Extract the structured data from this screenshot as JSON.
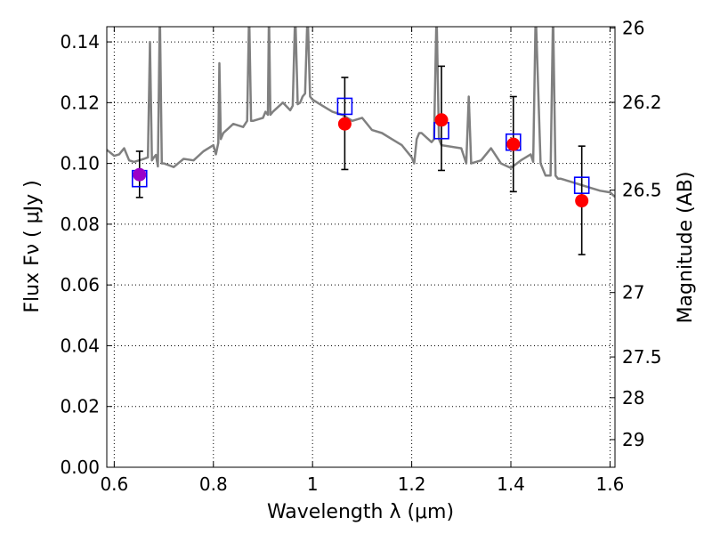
{
  "chart_data": {
    "type": "scatter",
    "xlabel": "Wavelength  λ (μm)",
    "ylabel": "Flux  Fν  ( μJy )",
    "ylabel_right": "Magnitude (AB)",
    "xlim": [
      0.585,
      1.61
    ],
    "ylim": [
      0.0,
      0.145
    ],
    "grid": true,
    "x_ticks": [
      {
        "value": 0.6,
        "label": "0.6"
      },
      {
        "value": 0.8,
        "label": "0.8"
      },
      {
        "value": 1.0,
        "label": "1"
      },
      {
        "value": 1.2,
        "label": "1.2"
      },
      {
        "value": 1.4,
        "label": "1.4"
      },
      {
        "value": 1.6,
        "label": "1.6"
      }
    ],
    "y_ticks": [
      {
        "value": 0.0,
        "label": "0.00"
      },
      {
        "value": 0.02,
        "label": "0.02"
      },
      {
        "value": 0.04,
        "label": "0.04"
      },
      {
        "value": 0.06,
        "label": "0.06"
      },
      {
        "value": 0.08,
        "label": "0.08"
      },
      {
        "value": 0.1,
        "label": "0.10"
      },
      {
        "value": 0.12,
        "label": "0.12"
      },
      {
        "value": 0.14,
        "label": "0.14"
      }
    ],
    "right_ticks": [
      {
        "flux": 0.1446,
        "label": "26"
      },
      {
        "flux": 0.1201,
        "label": "26.2"
      },
      {
        "flux": 0.0912,
        "label": "26.5"
      },
      {
        "flux": 0.0575,
        "label": "27"
      },
      {
        "flux": 0.0363,
        "label": "27.5"
      },
      {
        "flux": 0.0229,
        "label": "28"
      },
      {
        "flux": 0.0091,
        "label": "29"
      }
    ],
    "series": [
      {
        "name": "observed",
        "marker": "circle",
        "color": "#ff0000",
        "points": [
          {
            "x": 1.065,
            "y": 0.113,
            "yerr_low": 0.098,
            "yerr_high": 0.1283
          },
          {
            "x": 1.26,
            "y": 0.1143,
            "yerr_low": 0.0977,
            "yerr_high": 0.132
          },
          {
            "x": 1.405,
            "y": 0.1063,
            "yerr_low": 0.0907,
            "yerr_high": 0.122
          },
          {
            "x": 1.543,
            "y": 0.0877,
            "yerr_low": 0.07,
            "yerr_high": 0.1057
          }
        ]
      },
      {
        "name": "observed_optical",
        "marker": "circle",
        "color": "#9b00c8",
        "points": [
          {
            "x": 0.651,
            "y": 0.0963,
            "yerr_low": 0.0888,
            "yerr_high": 0.104
          }
        ]
      },
      {
        "name": "model_photometry",
        "marker": "square",
        "color": "#0000ff",
        "points": [
          {
            "x": 0.651,
            "y": 0.095
          },
          {
            "x": 1.065,
            "y": 0.1188
          },
          {
            "x": 1.26,
            "y": 0.1108
          },
          {
            "x": 1.405,
            "y": 0.107
          },
          {
            "x": 1.543,
            "y": 0.0928
          }
        ]
      }
    ],
    "spectrum": {
      "name": "template_spectrum",
      "color": "#808080",
      "x": [
        0.585,
        0.6,
        0.61,
        0.62,
        0.63,
        0.64,
        0.65,
        0.66,
        0.668,
        0.672,
        0.676,
        0.68,
        0.684,
        0.688,
        0.692,
        0.696,
        0.7,
        0.72,
        0.74,
        0.76,
        0.78,
        0.8,
        0.805,
        0.81,
        0.812,
        0.815,
        0.82,
        0.84,
        0.86,
        0.868,
        0.872,
        0.876,
        0.88,
        0.9,
        0.905,
        0.91,
        0.912,
        0.915,
        0.92,
        0.94,
        0.955,
        0.96,
        0.965,
        0.97,
        0.975,
        0.98,
        0.985,
        0.99,
        0.995,
        1.0,
        1.02,
        1.04,
        1.06,
        1.08,
        1.1,
        1.12,
        1.14,
        1.16,
        1.18,
        1.2,
        1.205,
        1.21,
        1.215,
        1.22,
        1.24,
        1.245,
        1.25,
        1.255,
        1.26,
        1.3,
        1.31,
        1.315,
        1.32,
        1.34,
        1.36,
        1.38,
        1.4,
        1.42,
        1.44,
        1.445,
        1.45,
        1.46,
        1.47,
        1.48,
        1.485,
        1.49,
        1.495,
        1.5,
        1.52,
        1.54,
        1.56,
        1.58,
        1.6,
        1.61
      ],
      "y": [
        0.1045,
        0.1025,
        0.103,
        0.105,
        0.101,
        0.1005,
        0.101,
        0.1015,
        0.102,
        0.14,
        0.101,
        0.102,
        0.1028,
        0.099,
        0.15,
        0.1,
        0.1,
        0.0988,
        0.1015,
        0.101,
        0.104,
        0.106,
        0.103,
        0.1068,
        0.133,
        0.108,
        0.11,
        0.113,
        0.112,
        0.114,
        0.15,
        0.114,
        0.114,
        0.115,
        0.117,
        0.116,
        0.15,
        0.116,
        0.117,
        0.12,
        0.1175,
        0.119,
        0.15,
        0.1195,
        0.12,
        0.122,
        0.123,
        0.15,
        0.122,
        0.121,
        0.119,
        0.117,
        0.116,
        0.114,
        0.115,
        0.111,
        0.11,
        0.108,
        0.106,
        0.102,
        0.1,
        0.108,
        0.11,
        0.11,
        0.107,
        0.108,
        0.15,
        0.108,
        0.106,
        0.105,
        0.1,
        0.122,
        0.1,
        0.101,
        0.105,
        0.1,
        0.0985,
        0.101,
        0.103,
        0.1005,
        0.15,
        0.1,
        0.096,
        0.096,
        0.15,
        0.096,
        0.095,
        0.095,
        0.094,
        0.093,
        0.092,
        0.091,
        0.0905,
        0.089
      ]
    }
  }
}
